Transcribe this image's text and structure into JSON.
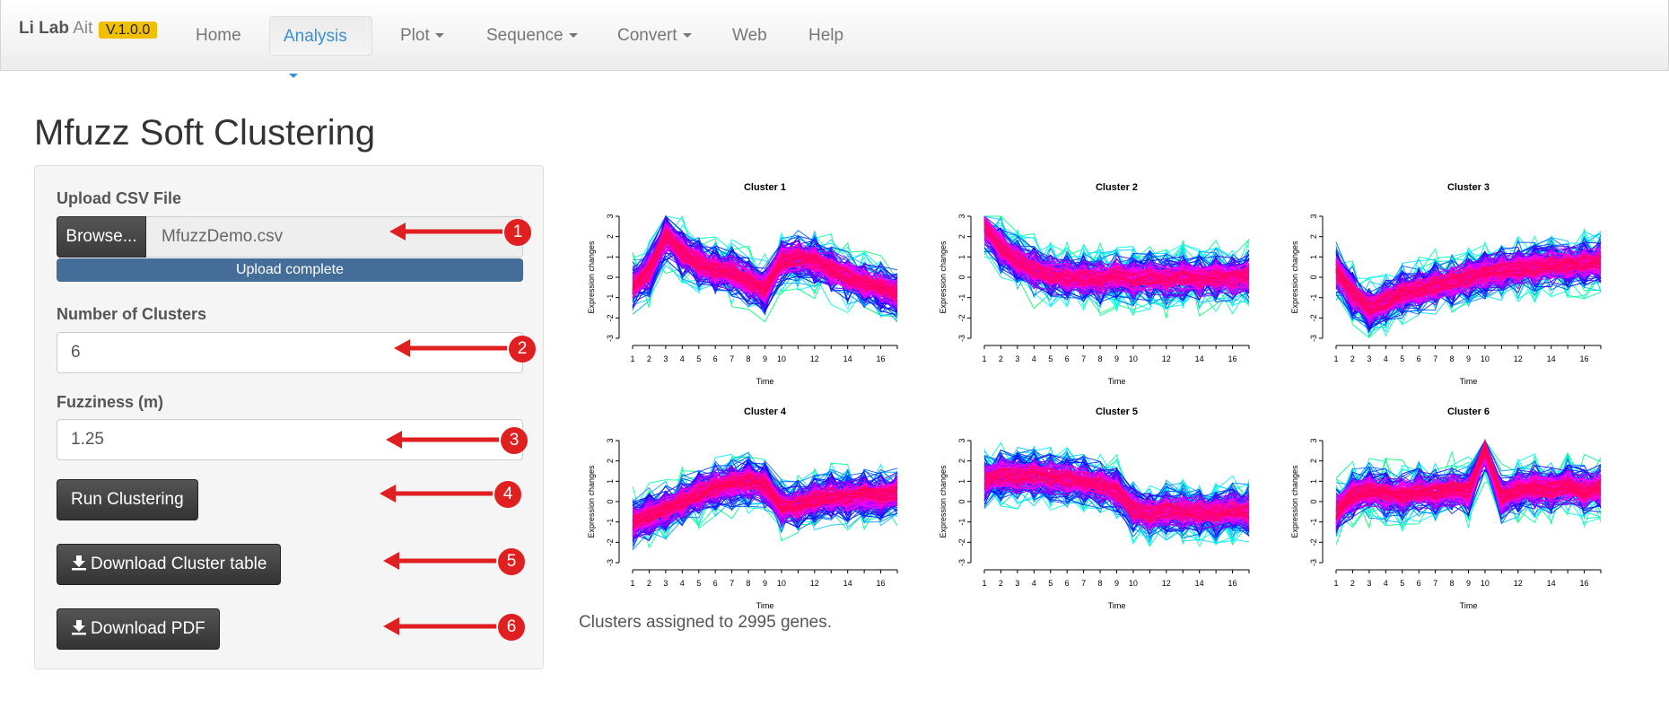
{
  "navbar": {
    "brand_main": "Li Lab",
    "brand_sub": "Ait",
    "version": "V.1.0.0",
    "items": [
      {
        "label": "Home",
        "dropdown": false
      },
      {
        "label": "Analysis",
        "dropdown": true,
        "active": true
      },
      {
        "label": "Plot",
        "dropdown": true
      },
      {
        "label": "Sequence",
        "dropdown": true
      },
      {
        "label": "Convert",
        "dropdown": true
      },
      {
        "label": "Web",
        "dropdown": false
      },
      {
        "label": "Help",
        "dropdown": false
      }
    ]
  },
  "page": {
    "title": "Mfuzz Soft Clustering"
  },
  "panel": {
    "upload_label": "Upload CSV File",
    "browse_label": "Browse...",
    "file_name": "MfuzzDemo.csv",
    "upload_status": "Upload complete",
    "clusters_label": "Number of Clusters",
    "clusters_value": "6",
    "fuzziness_label": "Fuzziness (m)",
    "fuzziness_value": "1.25",
    "run_label": "Run Clustering",
    "download_table_label": "Download Cluster table",
    "download_pdf_label": "Download PDF"
  },
  "annotations": [
    "1",
    "2",
    "3",
    "4",
    "5",
    "6"
  ],
  "colors": {
    "arrow": "#e02020",
    "progress": "#446d9a",
    "active_nav": "#3a8fd4",
    "membership_high": "#ff0066",
    "membership_mid": "#8800ff",
    "membership_low": "#00ff66"
  },
  "chart_data": [
    {
      "type": "line",
      "title": "Cluster 1",
      "xlabel": "Time",
      "ylabel": "Expression changes",
      "x": [
        1,
        2,
        3,
        4,
        5,
        6,
        7,
        8,
        9,
        10,
        11,
        12,
        13,
        14,
        15,
        16,
        17
      ],
      "x_ticks": [
        "1",
        "2",
        "3",
        "4",
        "5",
        "6",
        "7",
        "8",
        "9",
        "10",
        "12",
        "14",
        "16"
      ],
      "y_ticks": [
        "3",
        "2",
        "1",
        "0",
        "-1",
        "-2",
        "-3"
      ],
      "ylim": [
        -3,
        3
      ],
      "centroid": [
        -0.5,
        0.3,
        2.0,
        1.2,
        0.7,
        0.4,
        0.3,
        -0.2,
        -0.6,
        0.8,
        1.0,
        0.8,
        0.4,
        0.0,
        -0.3,
        -0.5,
        -0.8
      ]
    },
    {
      "type": "line",
      "title": "Cluster 2",
      "xlabel": "Time",
      "ylabel": "Expression changes",
      "x": [
        1,
        2,
        3,
        4,
        5,
        6,
        7,
        8,
        9,
        10,
        11,
        12,
        13,
        14,
        15,
        16,
        17
      ],
      "x_ticks": [
        "1",
        "2",
        "3",
        "4",
        "5",
        "6",
        "7",
        "8",
        "9",
        "10",
        "12",
        "14",
        "16"
      ],
      "y_ticks": [
        "3",
        "2",
        "1",
        "0",
        "-1",
        "-2",
        "-3"
      ],
      "ylim": [
        -3,
        3
      ],
      "centroid": [
        2.5,
        1.5,
        0.8,
        0.4,
        0.1,
        0.0,
        0.0,
        -0.1,
        0.1,
        -0.1,
        0.0,
        -0.1,
        0.0,
        -0.1,
        0.0,
        -0.1,
        0.1
      ]
    },
    {
      "type": "line",
      "title": "Cluster 3",
      "xlabel": "Time",
      "ylabel": "Expression changes",
      "x": [
        1,
        2,
        3,
        4,
        5,
        6,
        7,
        8,
        9,
        10,
        11,
        12,
        13,
        14,
        15,
        16,
        17
      ],
      "x_ticks": [
        "1",
        "2",
        "3",
        "4",
        "5",
        "6",
        "7",
        "8",
        "9",
        "10",
        "12",
        "14",
        "16"
      ],
      "y_ticks": [
        "3",
        "2",
        "1",
        "0",
        "-1",
        "-2",
        "-3"
      ],
      "ylim": [
        -3,
        3
      ],
      "centroid": [
        0.3,
        -0.8,
        -1.5,
        -1.2,
        -0.8,
        -0.6,
        -0.4,
        -0.2,
        0.0,
        0.2,
        0.3,
        0.4,
        0.5,
        0.6,
        0.6,
        0.7,
        0.8
      ]
    },
    {
      "type": "line",
      "title": "Cluster 4",
      "xlabel": "Time",
      "ylabel": "Expression changes",
      "x": [
        1,
        2,
        3,
        4,
        5,
        6,
        7,
        8,
        9,
        10,
        11,
        12,
        13,
        14,
        15,
        16,
        17
      ],
      "x_ticks": [
        "1",
        "2",
        "3",
        "4",
        "5",
        "6",
        "7",
        "8",
        "9",
        "10",
        "12",
        "14",
        "16"
      ],
      "y_ticks": [
        "3",
        "2",
        "1",
        "0",
        "-1",
        "-2",
        "-3"
      ],
      "ylim": [
        -3,
        3
      ],
      "centroid": [
        -1.0,
        -0.7,
        -0.4,
        0.0,
        0.4,
        0.7,
        0.9,
        1.0,
        0.8,
        -0.3,
        -0.2,
        0.1,
        0.3,
        0.2,
        0.4,
        0.3,
        0.5
      ]
    },
    {
      "type": "line",
      "title": "Cluster 5",
      "xlabel": "Time",
      "ylabel": "Expression changes",
      "x": [
        1,
        2,
        3,
        4,
        5,
        6,
        7,
        8,
        9,
        10,
        11,
        12,
        13,
        14,
        15,
        16,
        17
      ],
      "x_ticks": [
        "1",
        "2",
        "3",
        "4",
        "5",
        "6",
        "7",
        "8",
        "9",
        "10",
        "12",
        "14",
        "16"
      ],
      "y_ticks": [
        "3",
        "2",
        "1",
        "0",
        "-1",
        "-2",
        "-3"
      ],
      "ylim": [
        -3,
        3
      ],
      "centroid": [
        1.0,
        1.3,
        1.2,
        1.3,
        1.2,
        1.1,
        1.0,
        0.8,
        0.5,
        -0.4,
        -0.6,
        -0.4,
        -0.5,
        -0.5,
        -0.6,
        -0.4,
        -0.5
      ]
    },
    {
      "type": "line",
      "title": "Cluster 6",
      "xlabel": "Time",
      "ylabel": "Expression changes",
      "x": [
        1,
        2,
        3,
        4,
        5,
        6,
        7,
        8,
        9,
        10,
        11,
        12,
        13,
        14,
        15,
        16,
        17
      ],
      "x_ticks": [
        "1",
        "2",
        "3",
        "4",
        "5",
        "6",
        "7",
        "8",
        "9",
        "10",
        "12",
        "14",
        "16"
      ],
      "y_ticks": [
        "3",
        "2",
        "1",
        "0",
        "-1",
        "-2",
        "-3"
      ],
      "ylim": [
        -3,
        3
      ],
      "centroid": [
        -0.5,
        0.3,
        0.5,
        0.4,
        0.3,
        0.5,
        0.4,
        0.6,
        0.5,
        2.6,
        0.2,
        0.6,
        0.7,
        0.6,
        0.8,
        0.5,
        0.7
      ]
    }
  ],
  "summary": "Clusters assigned to 2995 genes."
}
